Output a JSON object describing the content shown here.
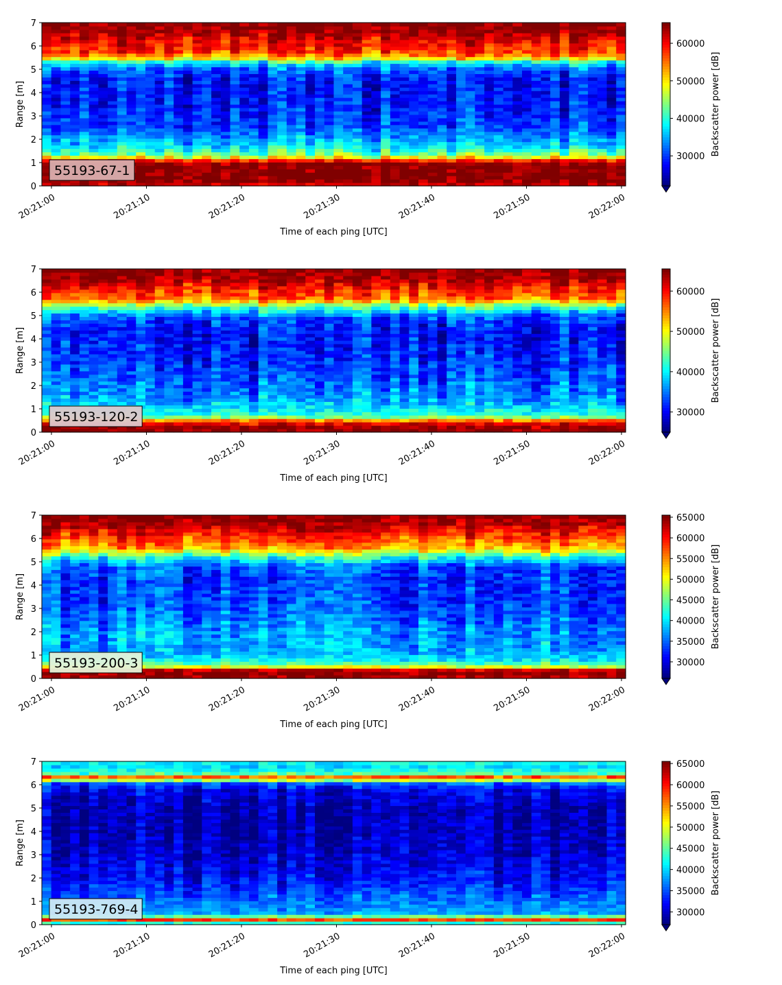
{
  "chart_data": [
    {
      "type": "heatmap",
      "id": "55193-67-1",
      "label": "55193-67-1",
      "label_box_color": "#d8aeae",
      "xlabel": "Time of each ping [UTC]",
      "ylabel": "Range [m]",
      "xticks": [
        "20:21:00",
        "20:21:10",
        "20:21:20",
        "20:21:30",
        "20:21:40",
        "20:21:50",
        "20:22:00"
      ],
      "yticks": [
        0,
        1,
        2,
        3,
        4,
        5,
        6,
        7
      ],
      "ylim": [
        0,
        7
      ],
      "colorbar": {
        "label": "Backscatter power [dB]",
        "ticks": [
          30000,
          40000,
          50000,
          60000
        ],
        "tick_labels": [
          "30000",
          "40000",
          "50000",
          "60000"
        ],
        "range": [
          22000,
          65500
        ]
      },
      "profile": [
        [
          0.0,
          62000
        ],
        [
          0.3,
          65500
        ],
        [
          1.0,
          64500
        ],
        [
          1.15,
          56000
        ],
        [
          1.3,
          44000
        ],
        [
          1.5,
          40000
        ],
        [
          1.75,
          36000
        ],
        [
          2.0,
          35000
        ],
        [
          2.5,
          30000
        ],
        [
          3.5,
          28000
        ],
        [
          4.5,
          27500
        ],
        [
          5.0,
          31000
        ],
        [
          5.3,
          38000
        ],
        [
          5.5,
          52000
        ],
        [
          5.8,
          58000
        ],
        [
          6.2,
          60000
        ],
        [
          6.6,
          64000
        ],
        [
          7.0,
          65500
        ]
      ],
      "noise": 6000
    },
    {
      "type": "heatmap",
      "id": "55193-120-2",
      "label": "55193-120-2",
      "label_box_color": "#dcc8cc",
      "xlabel": "Time of each ping [UTC]",
      "ylabel": "Range [m]",
      "xticks": [
        "20:21:00",
        "20:21:10",
        "20:21:20",
        "20:21:30",
        "20:21:40",
        "20:21:50",
        "20:22:00"
      ],
      "yticks": [
        0,
        1,
        2,
        3,
        4,
        5,
        6,
        7
      ],
      "ylim": [
        0,
        7
      ],
      "colorbar": {
        "label": "Backscatter power [dB]",
        "ticks": [
          30000,
          40000,
          50000,
          60000
        ],
        "tick_labels": [
          "30000",
          "40000",
          "50000",
          "60000"
        ],
        "range": [
          25000,
          65500
        ]
      },
      "profile": [
        [
          0.0,
          65500
        ],
        [
          0.3,
          64000
        ],
        [
          0.5,
          56000
        ],
        [
          0.7,
          42000
        ],
        [
          1.0,
          40000
        ],
        [
          1.3,
          37000
        ],
        [
          1.8,
          35000
        ],
        [
          2.5,
          33000
        ],
        [
          3.5,
          31000
        ],
        [
          4.5,
          31000
        ],
        [
          5.0,
          34000
        ],
        [
          5.4,
          44000
        ],
        [
          5.7,
          56000
        ],
        [
          6.2,
          60000
        ],
        [
          6.6,
          64000
        ],
        [
          7.0,
          65500
        ]
      ],
      "noise": 6000
    },
    {
      "type": "heatmap",
      "id": "55193-200-3",
      "label": "55193-200-3",
      "label_box_color": "#e4f2d8",
      "xlabel": "Time of each ping [UTC]",
      "ylabel": "Range [m]",
      "xticks": [
        "20:21:00",
        "20:21:10",
        "20:21:20",
        "20:21:30",
        "20:21:40",
        "20:21:50",
        "20:22:00"
      ],
      "yticks": [
        0,
        1,
        2,
        3,
        4,
        5,
        6,
        7
      ],
      "ylim": [
        0,
        7
      ],
      "colorbar": {
        "label": "Backscatter power [dB]",
        "ticks": [
          30000,
          35000,
          40000,
          45000,
          50000,
          55000,
          60000,
          65000
        ],
        "tick_labels": [
          "30000",
          "35000",
          "40000",
          "45000",
          "50000",
          "55000",
          "60000",
          "65000"
        ],
        "range": [
          26000,
          65500
        ]
      },
      "profile": [
        [
          0.0,
          64000
        ],
        [
          0.25,
          65000
        ],
        [
          0.4,
          62000
        ],
        [
          0.5,
          50000
        ],
        [
          0.7,
          42000
        ],
        [
          1.0,
          38000
        ],
        [
          1.5,
          37000
        ],
        [
          2.0,
          37000
        ],
        [
          3.0,
          34000
        ],
        [
          4.0,
          33000
        ],
        [
          4.8,
          34000
        ],
        [
          5.2,
          42000
        ],
        [
          5.6,
          54000
        ],
        [
          6.0,
          58000
        ],
        [
          6.5,
          63000
        ],
        [
          7.0,
          65000
        ]
      ],
      "noise": 5500
    },
    {
      "type": "heatmap",
      "id": "55193-769-4",
      "label": "55193-769-4",
      "label_box_color": "#cde8f4",
      "xlabel": "Time of each ping [UTC]",
      "ylabel": "Range [m]",
      "xticks": [
        "20:21:00",
        "20:21:10",
        "20:21:20",
        "20:21:30",
        "20:21:40",
        "20:21:50",
        "20:22:00"
      ],
      "yticks": [
        0,
        1,
        2,
        3,
        4,
        5,
        6,
        7
      ],
      "ylim": [
        0,
        7
      ],
      "colorbar": {
        "label": "Backscatter power [dB]",
        "ticks": [
          30000,
          35000,
          40000,
          45000,
          50000,
          55000,
          60000,
          65000
        ],
        "tick_labels": [
          "30000",
          "35000",
          "40000",
          "45000",
          "50000",
          "55000",
          "60000",
          "65000"
        ],
        "range": [
          27000,
          65500
        ]
      },
      "profile": [
        [
          0.0,
          36000
        ],
        [
          0.15,
          50000
        ],
        [
          0.25,
          62000
        ],
        [
          0.35,
          46000
        ],
        [
          0.5,
          38000
        ],
        [
          1.0,
          36000
        ],
        [
          1.5,
          34000
        ],
        [
          2.0,
          32000
        ],
        [
          3.0,
          30000
        ],
        [
          4.0,
          29000
        ],
        [
          5.0,
          29000
        ],
        [
          5.8,
          31000
        ],
        [
          6.1,
          36000
        ],
        [
          6.3,
          60000
        ],
        [
          6.5,
          44000
        ],
        [
          6.8,
          40000
        ],
        [
          7.0,
          42000
        ]
      ],
      "noise": 4500
    }
  ]
}
